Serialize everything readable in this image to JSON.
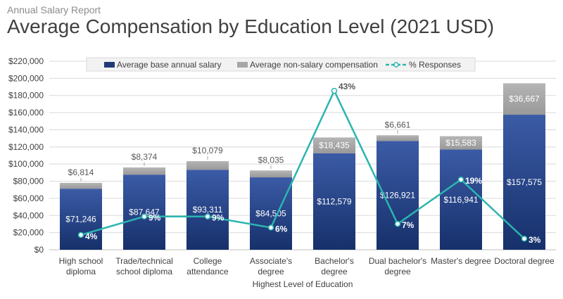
{
  "header": {
    "subtitle": "Annual Salary Report",
    "title": "Average Compensation by Education Level (2021 USD)"
  },
  "chart_data": {
    "type": "bar",
    "stacked": true,
    "xlabel": "Highest Level of Education",
    "ylim": [
      0,
      220000
    ],
    "yticks": [
      "$0",
      "$20,000",
      "$40,000",
      "$60,000",
      "$80,000",
      "$100,000",
      "$120,000",
      "$140,000",
      "$160,000",
      "$180,000",
      "$200,000",
      "$220,000"
    ],
    "ytick_values": [
      0,
      20000,
      40000,
      60000,
      80000,
      100000,
      120000,
      140000,
      160000,
      180000,
      200000,
      220000
    ],
    "grid": true,
    "legend_position": "top",
    "categories": [
      [
        "High school",
        "diploma"
      ],
      [
        "Trade/technical",
        "school diploma"
      ],
      [
        "College",
        "attendance"
      ],
      [
        "Associate's",
        "degree"
      ],
      [
        "Bachelor's",
        "degree"
      ],
      [
        "Dual bachelor's",
        "degree"
      ],
      [
        "Master's degree"
      ],
      [
        "Doctoral degree"
      ]
    ],
    "series": [
      {
        "name": "Average base annual salary",
        "color": "#1f3a78",
        "values": [
          71246,
          87647,
          93311,
          84505,
          112579,
          126921,
          116941,
          157575
        ],
        "labels": [
          "$71,246",
          "$87,647",
          "$93,311",
          "$84,505",
          "$112,579",
          "$126,921",
          "$116,941",
          "$157,575"
        ]
      },
      {
        "name": "Average non-salary compensation",
        "color": "#a6a6a6",
        "values": [
          6814,
          8374,
          10079,
          8035,
          18435,
          6661,
          15583,
          36667
        ],
        "labels": [
          "$6,814",
          "$8,374",
          "$10,079",
          "$8,035",
          "$18,435",
          "$6,661",
          "$15,583",
          "$36,667"
        ]
      },
      {
        "name": "% Responses",
        "type": "line",
        "color": "#2bb5b0",
        "values": [
          4,
          9,
          9,
          6,
          43,
          7,
          19,
          3
        ],
        "labels": [
          "4%",
          "9%",
          "9%",
          "6%",
          "43%",
          "7%",
          "19%",
          "3%"
        ]
      }
    ]
  }
}
